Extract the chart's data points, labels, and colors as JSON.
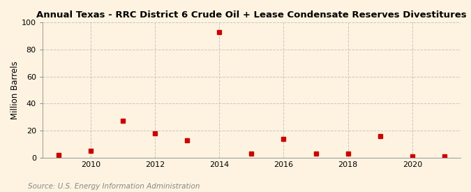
{
  "title": "Annual Texas - RRC District 6 Crude Oil + Lease Condensate Reserves Divestitures",
  "ylabel": "Million Barrels",
  "source": "Source: U.S. Energy Information Administration",
  "background_color": "#fdf3e0",
  "plot_background_color": "#fdf3e0",
  "marker_color": "#cc0000",
  "marker": "s",
  "marker_size": 4,
  "years": [
    2009,
    2010,
    2011,
    2012,
    2013,
    2014,
    2015,
    2016,
    2017,
    2018,
    2019,
    2020,
    2021
  ],
  "values": [
    2.0,
    5.0,
    27.5,
    18.0,
    13.0,
    93.0,
    3.0,
    14.0,
    3.0,
    3.0,
    16.0,
    1.0,
    1.0
  ],
  "ylim": [
    0,
    100
  ],
  "yticks": [
    0,
    20,
    40,
    60,
    80,
    100
  ],
  "xlim": [
    2008.5,
    2021.5
  ],
  "xticks": [
    2010,
    2012,
    2014,
    2016,
    2018,
    2020
  ],
  "grid_color": "#bbbbbb",
  "grid_style": "--",
  "grid_alpha": 0.8,
  "title_fontsize": 9.5,
  "ylabel_fontsize": 8.5,
  "tick_fontsize": 8,
  "source_fontsize": 7.5
}
